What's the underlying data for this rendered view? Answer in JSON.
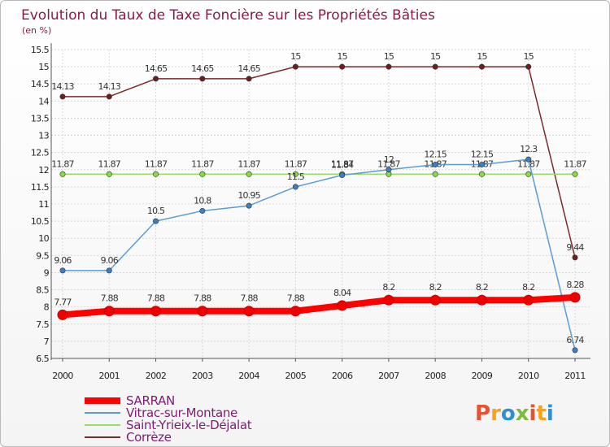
{
  "chart_data": {
    "type": "line",
    "title": "Evolution du Taux de Taxe Foncière sur les Propriétés Bâties",
    "subtitle": "(en %)",
    "xlabel": "",
    "ylabel": "",
    "ylim": [
      6.5,
      15.5
    ],
    "y_step": 0.5,
    "grid": true,
    "x": [
      "2000",
      "2001",
      "2002",
      "2003",
      "2004",
      "2005",
      "2006",
      "2007",
      "2008",
      "2009",
      "2010",
      "2011"
    ],
    "series": [
      {
        "name": "SARRAN",
        "color": "#ff0000",
        "emphasis": true,
        "values": [
          7.77,
          7.88,
          7.88,
          7.88,
          7.88,
          7.88,
          8.04,
          8.2,
          8.2,
          8.2,
          8.2,
          8.28
        ],
        "labels": [
          "7.77",
          "7.88",
          "7.88",
          "7.88",
          "7.88",
          "7.88",
          "8.04",
          "8.2",
          "8.2",
          "8.2",
          "8.2",
          "8.28"
        ]
      },
      {
        "name": "Vitrac-sur-Montane",
        "color": "#5b9bd5",
        "marker_color": "#3a7fc7",
        "values": [
          9.06,
          9.06,
          10.5,
          10.8,
          10.95,
          11.5,
          11.84,
          12,
          12.15,
          12.15,
          12.3,
          6.74
        ],
        "labels": [
          "9.06",
          "9.06",
          "10.5",
          "10.8",
          "10.95",
          "11.5",
          "11.84",
          "12",
          "12.15",
          "12.15",
          "12.3",
          "6.74"
        ]
      },
      {
        "name": "Saint-Yrieix-le-Déjalat",
        "color": "#99dd66",
        "marker_color": "#88dd44",
        "values": [
          11.87,
          11.87,
          11.87,
          11.87,
          11.87,
          11.87,
          11.87,
          11.87,
          11.87,
          11.87,
          11.87,
          11.87
        ],
        "labels": [
          "11.87",
          "11.87",
          "11.87",
          "11.87",
          "11.87",
          "11.87",
          "11.87",
          "11.87",
          "11.87",
          "11.87",
          "11.87",
          "11.87"
        ]
      },
      {
        "name": "Corrèze",
        "color": "#7a2a2a",
        "marker_color": "#6b1f1f",
        "values": [
          14.13,
          14.13,
          14.65,
          14.65,
          14.65,
          15,
          15,
          15,
          15,
          15,
          15,
          9.44
        ],
        "labels": [
          "14.13",
          "14.13",
          "14.65",
          "14.65",
          "14.65",
          "15",
          "15",
          "15",
          "15",
          "15",
          "15",
          "9.44"
        ]
      }
    ]
  },
  "branding": {
    "logo_text": "Proxiti",
    "logo_colors": [
      "#e8522f",
      "#f4a31b",
      "#2f8fd1",
      "#7cbb3a",
      "#e8522f",
      "#f4a31b",
      "#2f8fd1"
    ]
  }
}
